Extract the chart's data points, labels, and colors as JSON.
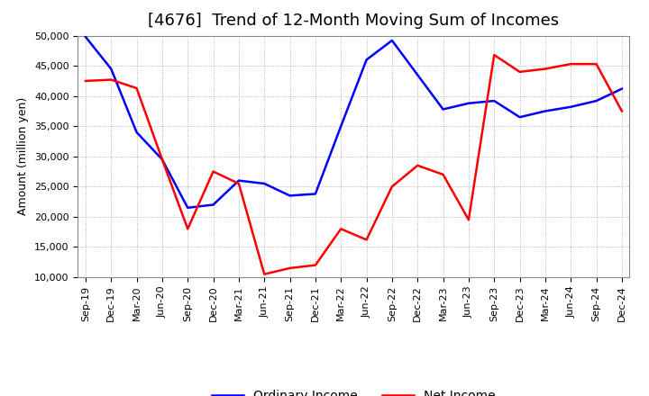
{
  "title": "[4676]  Trend of 12-Month Moving Sum of Incomes",
  "ylabel": "Amount (million yen)",
  "x_labels": [
    "Sep-19",
    "Dec-19",
    "Mar-20",
    "Jun-20",
    "Sep-20",
    "Dec-20",
    "Mar-21",
    "Jun-21",
    "Sep-21",
    "Dec-21",
    "Mar-22",
    "Jun-22",
    "Sep-22",
    "Dec-22",
    "Mar-23",
    "Jun-23",
    "Sep-23",
    "Dec-23",
    "Mar-24",
    "Jun-24",
    "Sep-24",
    "Dec-24"
  ],
  "ordinary_income": [
    49800,
    44500,
    34000,
    29500,
    21500,
    22000,
    26000,
    25500,
    23500,
    23800,
    35000,
    46000,
    49200,
    43500,
    37800,
    38800,
    39200,
    36500,
    37500,
    38200,
    39200,
    41200
  ],
  "net_income": [
    42500,
    42700,
    41300,
    29500,
    18000,
    27500,
    25500,
    10500,
    11500,
    12000,
    18000,
    16200,
    25000,
    28500,
    27000,
    19500,
    46800,
    44000,
    44500,
    45300,
    45300,
    37500
  ],
  "ordinary_color": "#0000FF",
  "net_color": "#FF0000",
  "ylim": [
    10000,
    50000
  ],
  "yticks": [
    10000,
    15000,
    20000,
    25000,
    30000,
    35000,
    40000,
    45000,
    50000
  ],
  "background_color": "#FFFFFF",
  "grid_color": "#999999",
  "title_fontsize": 13,
  "axis_label_fontsize": 9,
  "tick_fontsize": 8,
  "legend_fontsize": 10,
  "linewidth": 1.8
}
